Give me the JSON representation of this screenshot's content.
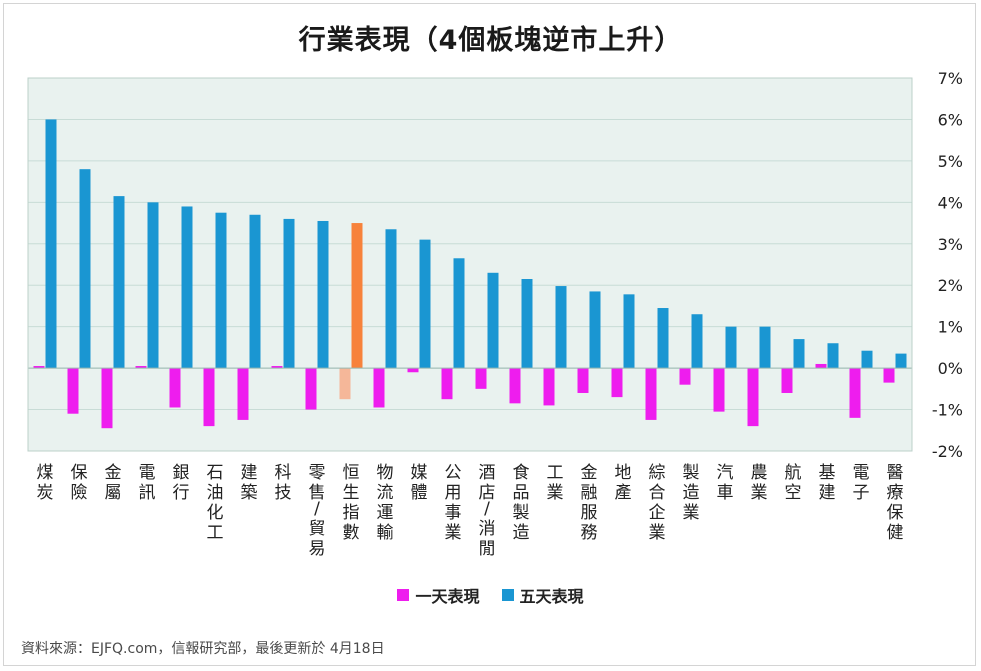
{
  "chart_data": {
    "type": "bar",
    "title": "行業表現（4個板塊逆市上升）",
    "categories": [
      "煤炭",
      "保險",
      "金屬",
      "電訊",
      "銀行",
      "石油化工",
      "建築",
      "科技",
      "零售/貿易",
      "恒生指數",
      "物流運輸",
      "媒體",
      "公用事業",
      "酒店/消閒",
      "食品製造",
      "工業",
      "金融服務",
      "地產",
      "綜合企業",
      "製造業",
      "汽車",
      "農業",
      "航空",
      "基建",
      "電子",
      "醫療保健"
    ],
    "series": [
      {
        "name": "一天表現",
        "color": "#ee1dee",
        "values": [
          0.05,
          -1.1,
          -1.45,
          0.05,
          -0.95,
          -1.4,
          -1.25,
          0.05,
          -1.0,
          -0.75,
          -0.95,
          -0.1,
          -0.75,
          -0.5,
          -0.85,
          -0.9,
          -0.6,
          -0.7,
          -1.25,
          -0.4,
          -1.05,
          -1.4,
          -0.6,
          0.1,
          -1.2,
          -0.35
        ]
      },
      {
        "name": "五天表現",
        "color": "#1a96d2",
        "values": [
          6.0,
          4.8,
          4.15,
          4.0,
          3.9,
          3.75,
          3.7,
          3.6,
          3.55,
          3.5,
          3.35,
          3.1,
          2.65,
          2.3,
          2.15,
          1.98,
          1.85,
          1.78,
          1.45,
          1.3,
          1.0,
          1.0,
          0.7,
          0.6,
          0.42,
          0.35
        ]
      }
    ],
    "highlight": {
      "category": "恒生指數",
      "one_day_color": "#f5b799",
      "five_day_color": "#f7823b"
    },
    "ylim": [
      -2,
      7
    ],
    "yticks": [
      "-2%",
      "-1%",
      "0%",
      "1%",
      "2%",
      "3%",
      "4%",
      "5%",
      "6%",
      "7%"
    ],
    "grid": true,
    "legend_position": "bottom"
  },
  "colors": {
    "plot_bg": "#e9f2ef",
    "grid": "#c8dcd6"
  },
  "source": "資料來源：EJFQ.com，信報研究部，最後更新於 4月18日"
}
